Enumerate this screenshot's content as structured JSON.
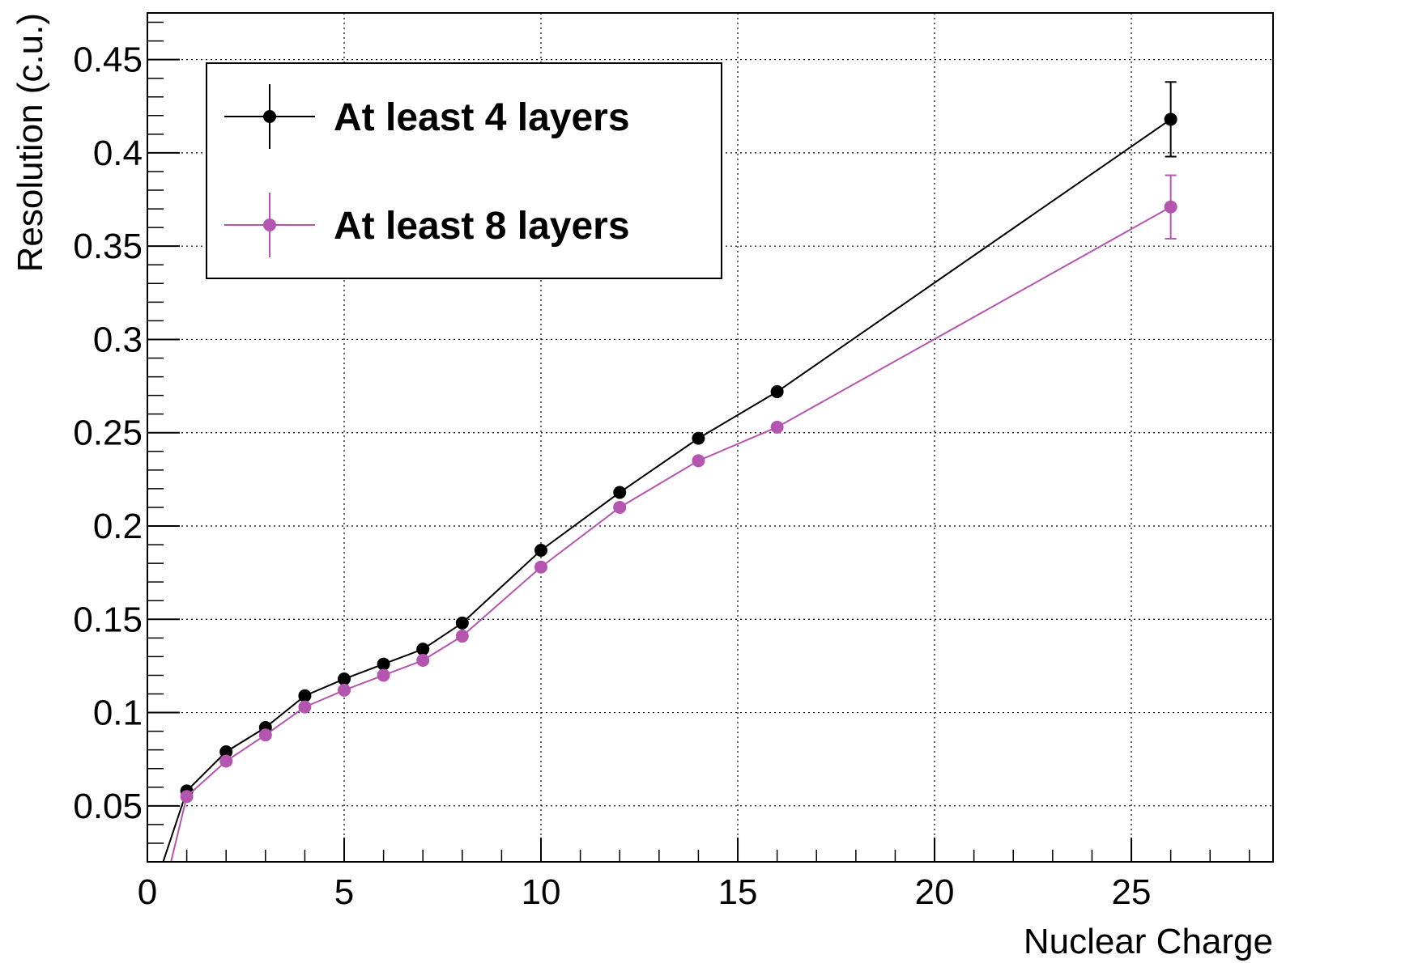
{
  "chart_data": {
    "type": "line",
    "title": "",
    "xlabel": "Nuclear Charge",
    "ylabel": "Resolution (c.u.)",
    "xlim": [
      0,
      28.6
    ],
    "ylim": [
      0.02,
      0.475
    ],
    "x_ticks": [
      0,
      5,
      10,
      15,
      20,
      25
    ],
    "x_tick_labels": [
      "0",
      "5",
      "10",
      "15",
      "20",
      "25"
    ],
    "y_ticks": [
      0.05,
      0.1,
      0.15,
      0.2,
      0.25,
      0.3,
      0.35,
      0.4,
      0.45
    ],
    "y_tick_labels": [
      "0.05",
      "0.1",
      "0.15",
      "0.2",
      "0.25",
      "0.3",
      "0.35",
      "0.4",
      "0.45"
    ],
    "grid": true,
    "legend_position": "top-left",
    "series": [
      {
        "name": "At least 4 layers",
        "color": "#000000",
        "x": [
          1,
          2,
          3,
          4,
          5,
          6,
          7,
          8,
          10,
          12,
          14,
          16,
          26
        ],
        "y": [
          0.058,
          0.079,
          0.092,
          0.109,
          0.118,
          0.126,
          0.134,
          0.148,
          0.187,
          0.218,
          0.247,
          0.272,
          0.418
        ],
        "yerr": [
          0.001,
          0.001,
          0.001,
          0.001,
          0.001,
          0.001,
          0.001,
          0.001,
          0.001,
          0.001,
          0.001,
          0.002,
          0.02
        ],
        "line_start": [
          0.4,
          0.02
        ]
      },
      {
        "name": "At least 8 layers",
        "color": "#b455b0",
        "x": [
          1,
          2,
          3,
          4,
          5,
          6,
          7,
          8,
          10,
          12,
          14,
          16,
          26
        ],
        "y": [
          0.055,
          0.074,
          0.088,
          0.103,
          0.112,
          0.12,
          0.128,
          0.141,
          0.178,
          0.21,
          0.235,
          0.253,
          0.371
        ],
        "yerr": [
          0.001,
          0.001,
          0.001,
          0.001,
          0.001,
          0.001,
          0.001,
          0.001,
          0.001,
          0.001,
          0.001,
          0.002,
          0.017
        ],
        "line_start": [
          0.6,
          0.02
        ]
      }
    ]
  }
}
